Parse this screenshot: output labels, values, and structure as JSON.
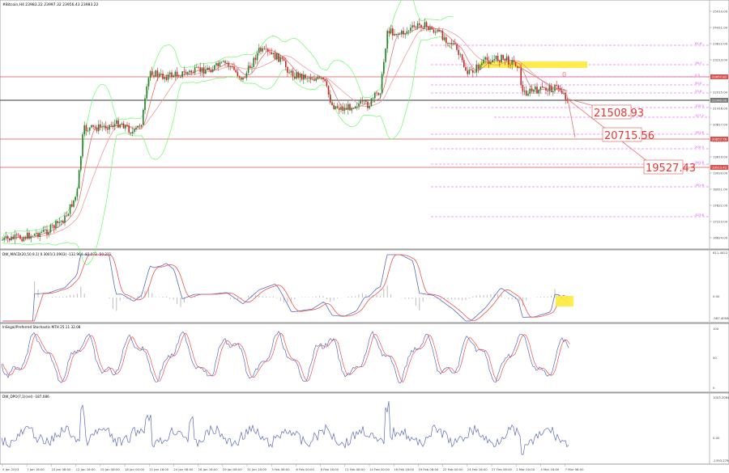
{
  "window": {
    "symbol_title": "#Bitcoin,H4  23983.22 23997.32 23956.43 23983.22"
  },
  "panels": {
    "macd": {
      "title": "DW_MACD(20,50,9,1) 0.3001(1.0903)  -132.964  -82.073  -50.211"
    },
    "stoch": {
      "title": "InSegal/Preferred Stochastic MTH 25.11 32.08"
    },
    "dpo": {
      "title": "DW_DPO(7,1)(sel)  -187.086"
    }
  },
  "price_scale": [
    "25010.00",
    "24411.00",
    "23812.00",
    "23213.00",
    "22614.00",
    "22015.00",
    "21416.00",
    "20817.00",
    "20218.00",
    "19619.00",
    "19020.00",
    "18421.00",
    "17822.00",
    "17223.00",
    "16624.00"
  ],
  "price_tags": [
    {
      "label": "22857.82",
      "color": "#d9534f"
    },
    {
      "label": "22340.00",
      "color": "#7a7a7a"
    },
    {
      "label": "20857.76",
      "color": "#d9534f"
    },
    {
      "label": "19513.42",
      "color": "#d9534f"
    }
  ],
  "macd_scale": [
    "611.4022",
    "0.00",
    "-587.4058"
  ],
  "stoch_scale": [
    "100",
    "50",
    "0"
  ],
  "dpo_scale": [
    "1003.2084",
    "0.00",
    "-1393.278"
  ],
  "time_axis": [
    "5 Jan 2023",
    "7 Jan 16:00",
    "10 Jan 08:00",
    "12 Jan 16:00",
    "15 Jan 08:00",
    "18 Jan 00:00",
    "21 Jan 16:00",
    "24 Jan 08:00",
    "26 Jan 16:00",
    "29 Jan 08:00",
    "31 Jan 16:00",
    "3 Feb 08:00",
    "6 Feb 00:00",
    "8 Feb 16:00",
    "11 Feb 08:00",
    "14 Feb 00:00",
    "16 Feb 16:00",
    "19 Feb 08:00",
    "22 Feb 00:00",
    "24 Feb 16:00",
    "27 Feb 08:00",
    "2 Mar 00:00",
    "4 Mar 16:00",
    "7 Mar 08:00"
  ],
  "targets": [
    {
      "label": "21508.93"
    },
    {
      "label": "20715.56"
    },
    {
      "label": "19527.43"
    }
  ],
  "fib_labels": [
    "61.8",
    "38.2",
    "0.0",
    "50.0",
    "23.6",
    "100.0",
    "127.2",
    "161.8",
    "200.0",
    "261.8",
    "423.6",
    "161.8"
  ],
  "colors": {
    "bull": "#2e7d32",
    "bear": "#c62828",
    "ma_fast": "#e57373",
    "ma_slow": "#ef9a9a",
    "bollinger": "#66ff66",
    "fib": "#e040fb",
    "highlight": "#ffeb3b",
    "macd_line": "#5c6bc0",
    "signal_line": "#ef5350"
  }
}
